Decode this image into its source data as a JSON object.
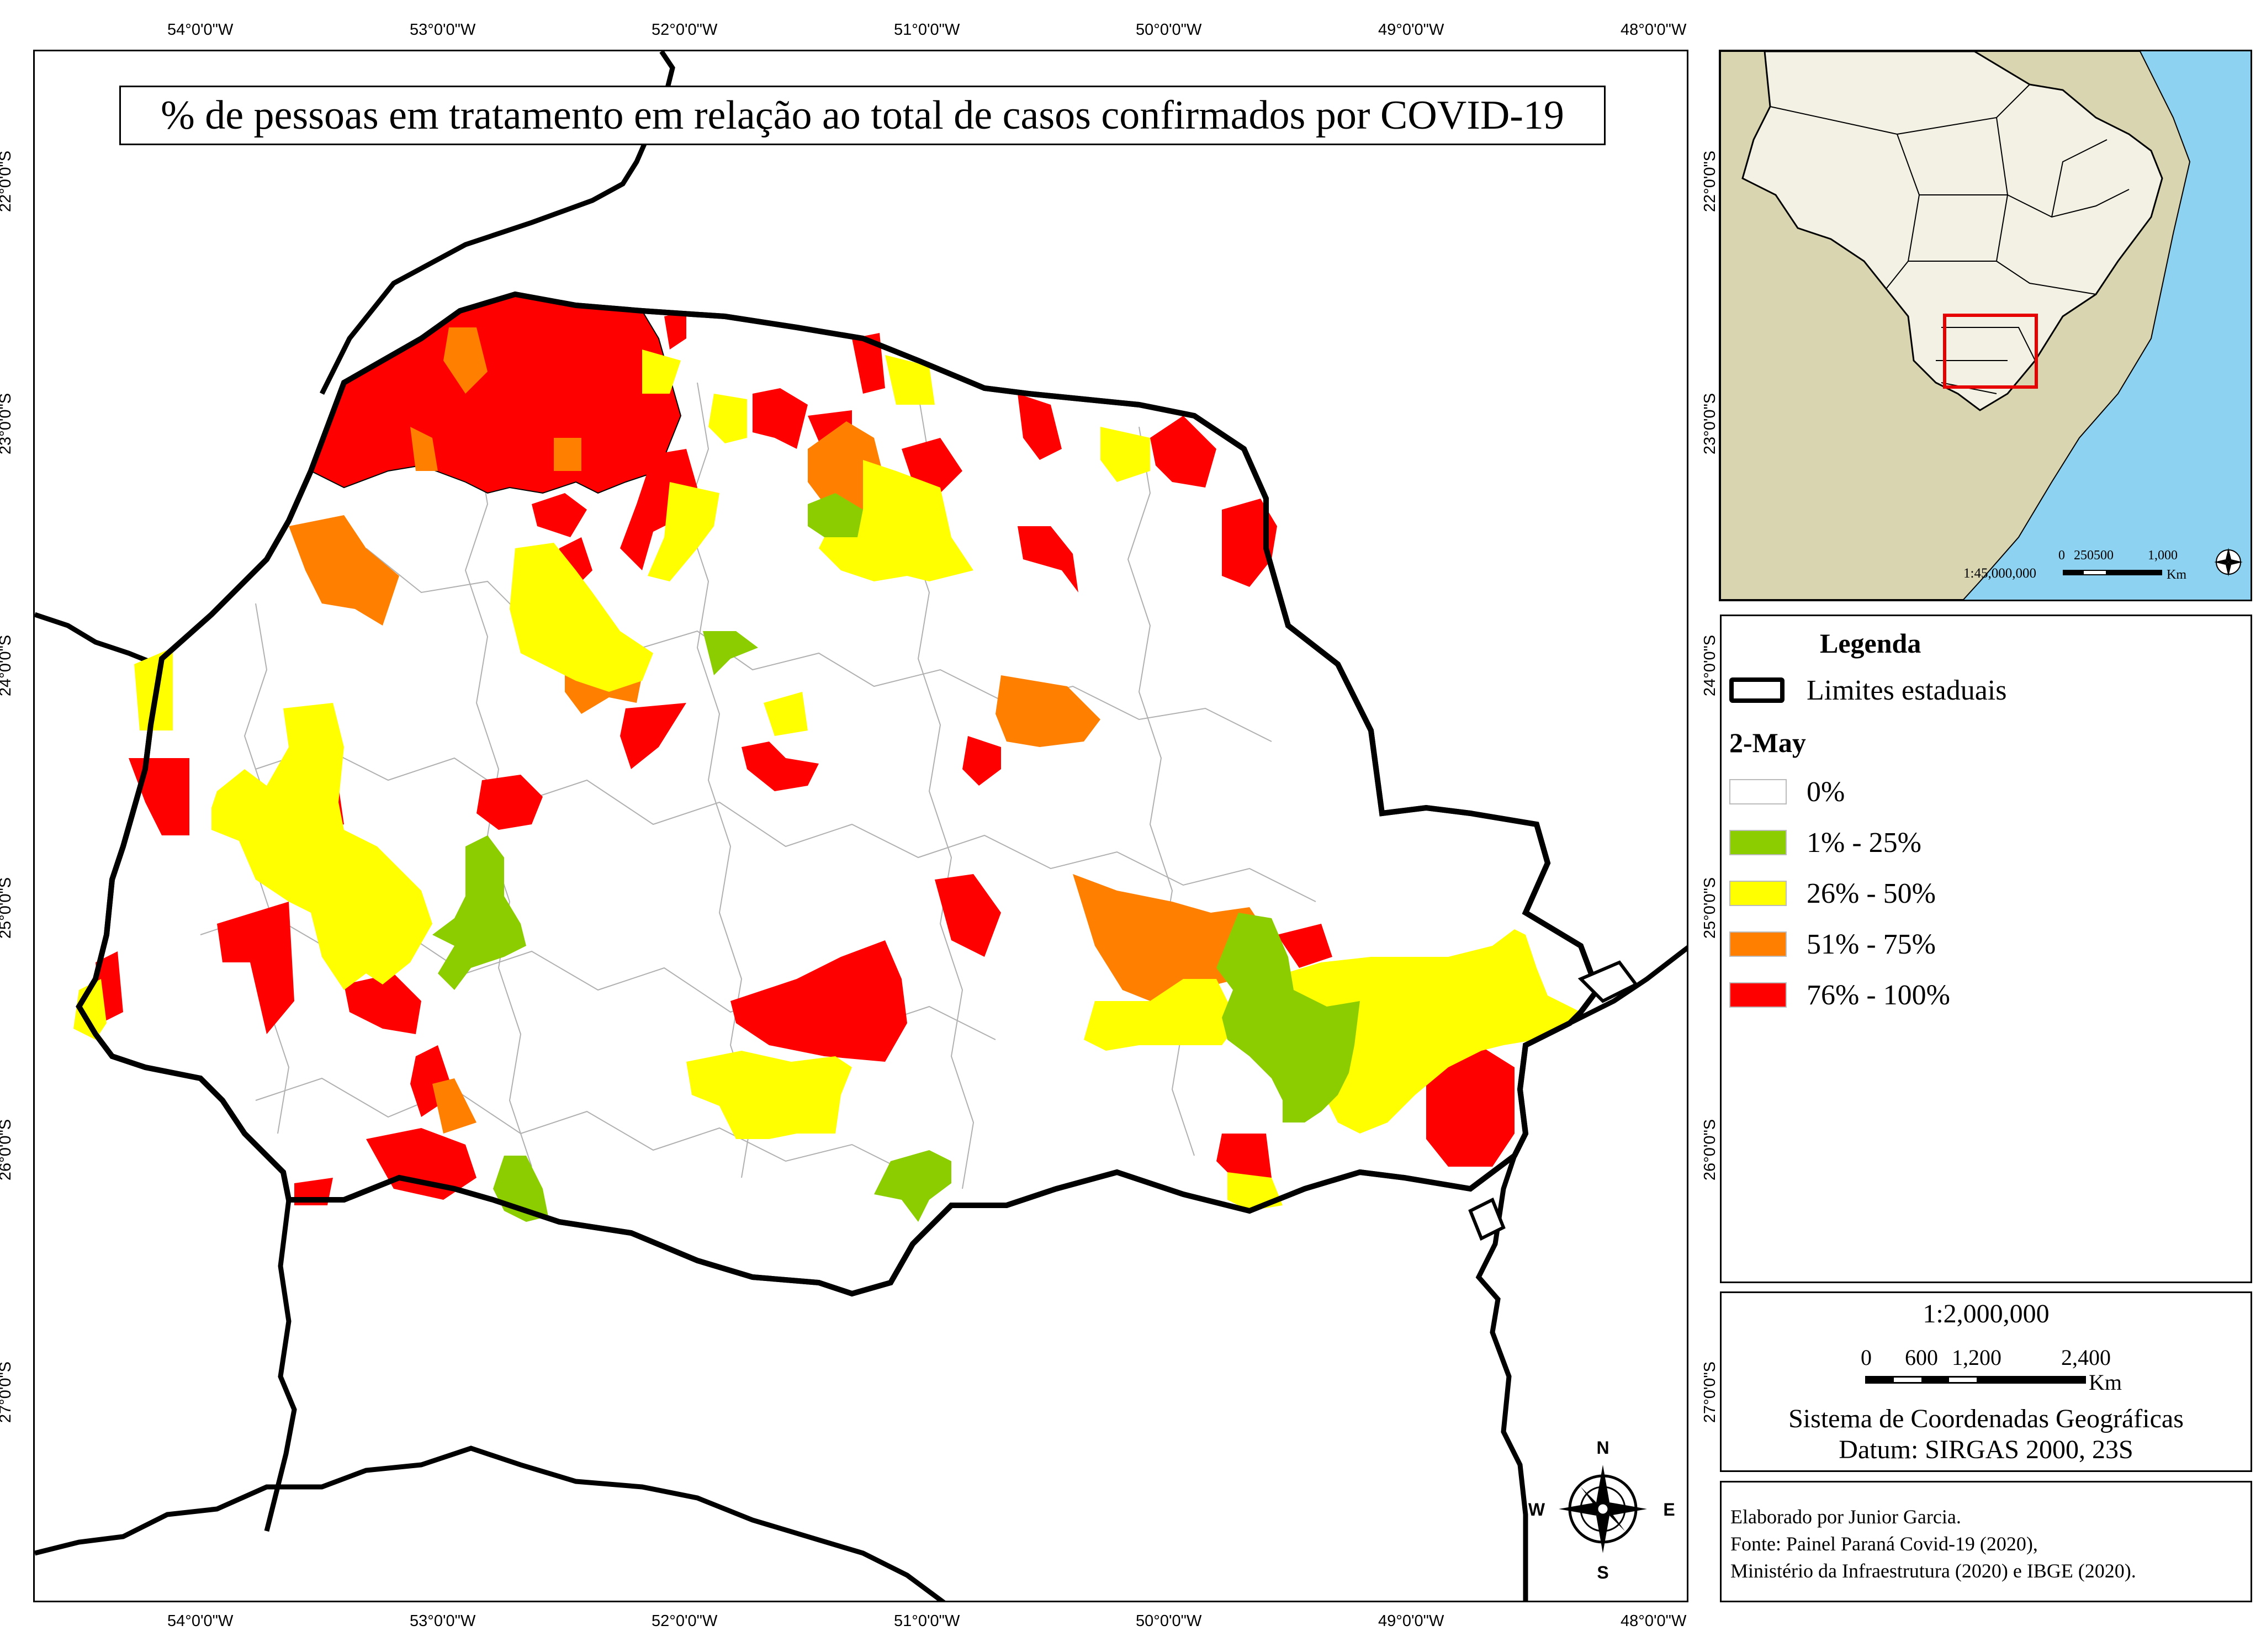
{
  "map": {
    "title": "% de pessoas em tratamento em relação ao total de casos confirmados por COVID-19",
    "lon_ticks": [
      "54°0'0\"W",
      "53°0'0\"W",
      "52°0'0\"W",
      "51°0'0\"W",
      "50°0'0\"W",
      "49°0'0\"W",
      "48°0'0\"W"
    ],
    "lat_ticks": [
      "22°0'0\"S",
      "23°0'0\"S",
      "24°0'0\"S",
      "25°0'0\"S",
      "26°0'0\"S",
      "27°0'0\"S"
    ],
    "colors": {
      "none": "#ffffff",
      "c1_25": "#8ccd00",
      "c26_50": "#ffff00",
      "c51_75": "#ff8000",
      "c76_100": "#ff0000",
      "ocean": "#8dd3f1",
      "land": "#d8d5b0",
      "brazil": "#f3f1e4",
      "inset_box": "#e60000"
    }
  },
  "compass": {
    "n": "N",
    "s": "S",
    "e": "E",
    "w": "W"
  },
  "inset": {
    "scale_text": "1:45,000,000",
    "scale_labels": [
      "0",
      "250500",
      "1,000"
    ],
    "unit": "Km"
  },
  "legend": {
    "title": "Legenda",
    "state_limits_label": "Limites estaduais",
    "date_label": "2-May",
    "classes": [
      {
        "label": "0%",
        "color": "#ffffff"
      },
      {
        "label": "1% - 25%",
        "color": "#8ccd00"
      },
      {
        "label": "26% - 50%",
        "color": "#ffff00"
      },
      {
        "label": "51% - 75%",
        "color": "#ff8000"
      },
      {
        "label": "76% - 100%",
        "color": "#ff0000"
      }
    ]
  },
  "scale": {
    "ratio": "1:2,000,000",
    "labels": [
      "0",
      "600",
      "1,200",
      "2,400"
    ],
    "unit": "Km",
    "crs_line1": "Sistema de Coordenadas Geográficas",
    "crs_line2": "Datum: SIRGAS 2000, 23S"
  },
  "credits": {
    "line1": "Elaborado por Junior Garcia.",
    "line2": "Fonte: Painel Paraná Covid-19 (2020),",
    "line3": "Ministério da Infraestrutura (2020) e IBGE (2020)."
  }
}
